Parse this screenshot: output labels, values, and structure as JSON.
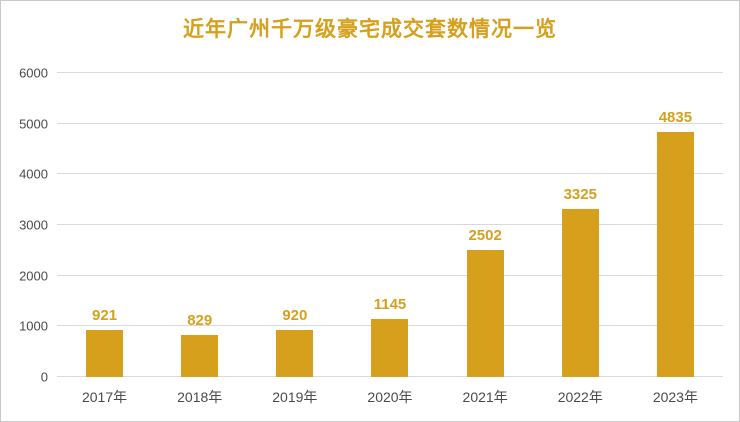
{
  "chart": {
    "title_label": "近年广州千万级豪宅成交套数情况一览"
  },
  "chart_data": {
    "type": "bar",
    "title": "近年广州千万级豪宅成交套数情况一览",
    "categories": [
      "2017年",
      "2018年",
      "2019年",
      "2020年",
      "2021年",
      "2022年",
      "2023年"
    ],
    "values": [
      921,
      829,
      920,
      1145,
      2502,
      3325,
      4835
    ],
    "xlabel": "",
    "ylabel": "",
    "ylim": [
      0,
      6000
    ],
    "yticks": [
      0,
      1000,
      2000,
      3000,
      4000,
      5000,
      6000
    ],
    "grid": true,
    "legend": "none",
    "colors": {
      "bar": "#d6a01d",
      "title": "#d6a01d",
      "value_labels": "#d6a01d",
      "axis_text": "#4a4a4a",
      "gridline": "#d9d9d9",
      "background": "#ffffff"
    }
  }
}
